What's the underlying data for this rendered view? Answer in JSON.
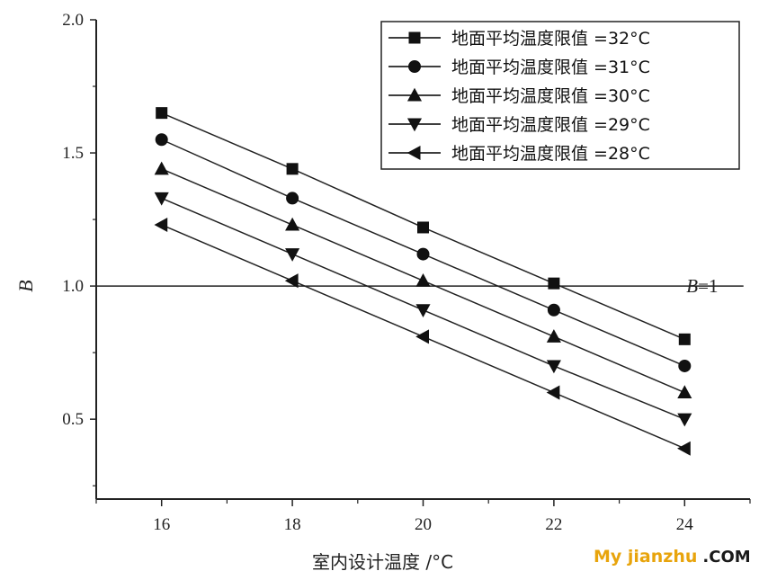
{
  "chart_data": {
    "type": "line",
    "xlabel": "室内设计温度 /°C",
    "ylabel": "B",
    "x": [
      16,
      18,
      20,
      22,
      24
    ],
    "xlim": [
      15,
      25
    ],
    "ylim": [
      0.2,
      2.0
    ],
    "xticks": [
      16,
      18,
      20,
      22,
      24
    ],
    "yticks": [
      0.5,
      1.0,
      1.5,
      2.0
    ],
    "ytick_labels": [
      "0.5",
      "1.0",
      "1.5",
      "2.0"
    ],
    "xtick_labels": [
      "16",
      "18",
      "20",
      "22",
      "24"
    ],
    "legend_position": "top-right",
    "grid": false,
    "series": [
      {
        "name": "地面平均温度限值 =32°C",
        "marker": "square",
        "values": [
          1.65,
          1.44,
          1.22,
          1.01,
          0.8
        ]
      },
      {
        "name": "地面平均温度限值 =31°C",
        "marker": "circle",
        "values": [
          1.55,
          1.33,
          1.12,
          0.91,
          0.7
        ]
      },
      {
        "name": "地面平均温度限值 =30°C",
        "marker": "triangle-up",
        "values": [
          1.44,
          1.23,
          1.02,
          0.81,
          0.6
        ]
      },
      {
        "name": "地面平均温度限值 =29°C",
        "marker": "triangle-down",
        "values": [
          1.33,
          1.12,
          0.91,
          0.7,
          0.5
        ]
      },
      {
        "name": "地面平均温度限值 =28°C",
        "marker": "triangle-left",
        "values": [
          1.23,
          1.02,
          0.81,
          0.6,
          0.39
        ]
      }
    ],
    "reference_line": {
      "y": 1.0,
      "label_italic": "B",
      "label_rest": "=1"
    }
  },
  "watermark": {
    "main": "My jianzhu",
    "tld": ".COM"
  }
}
